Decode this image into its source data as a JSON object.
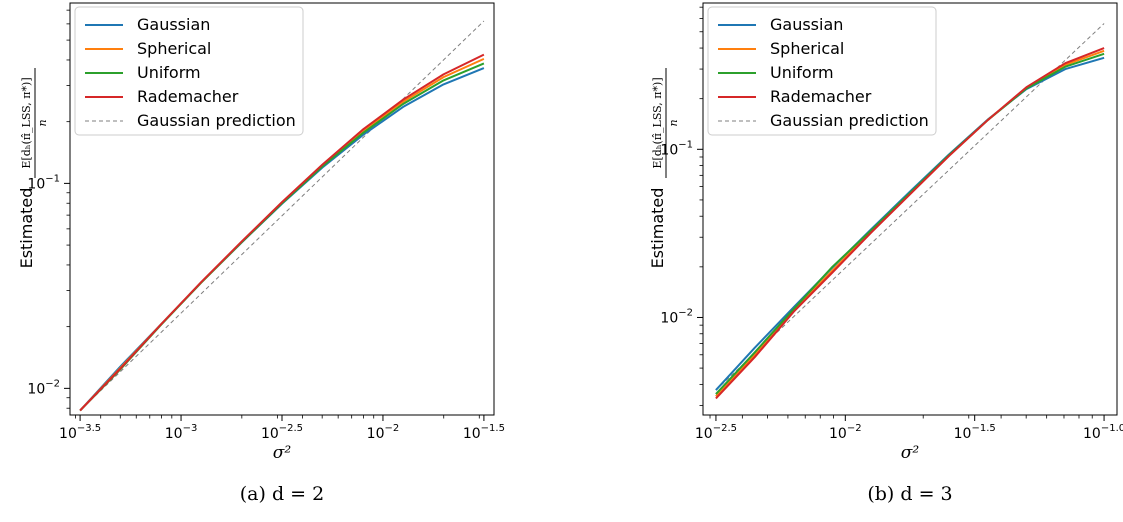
{
  "chart_data": [
    {
      "type": "line",
      "scale": "log-log",
      "caption": "(a) d = 2",
      "xlabel": "σ²",
      "ylabel": "Estimated",
      "ylabel_fraction": {
        "numerator": "E[dₕ(π̂_LSS, π*)]",
        "denominator": "n"
      },
      "xlim_log10": [
        -3.55,
        -1.45
      ],
      "ylim_log10": [
        -2.13,
        -0.12
      ],
      "x_ticks": [
        {
          "log10": -3.5,
          "label_base": "10",
          "label_exp": "−3.5"
        },
        {
          "log10": -3.0,
          "label_base": "10",
          "label_exp": "−3"
        },
        {
          "log10": -2.5,
          "label_base": "10",
          "label_exp": "−2.5"
        },
        {
          "log10": -2.0,
          "label_base": "10",
          "label_exp": "−2"
        },
        {
          "log10": -1.5,
          "label_base": "10",
          "label_exp": "−1.5"
        }
      ],
      "y_ticks": [
        {
          "log10": -2,
          "label_base": "10",
          "label_exp": "−2"
        },
        {
          "log10": -1,
          "label_base": "10",
          "label_exp": "−1"
        }
      ],
      "legend_position": "upper-left",
      "series": [
        {
          "name": "Gaussian",
          "color": "#1f77b4",
          "style": "solid",
          "x_log10": [
            -3.5,
            -3.3,
            -3.1,
            -2.9,
            -2.7,
            -2.5,
            -2.3,
            -2.1,
            -1.9,
            -1.7,
            -1.5
          ],
          "y": [
            0.0078,
            0.0128,
            0.0205,
            0.0328,
            0.0515,
            0.0795,
            0.1195,
            0.172,
            0.236,
            0.304,
            0.365
          ]
        },
        {
          "name": "Spherical",
          "color": "#ff7f0e",
          "style": "solid",
          "x_log10": [
            -3.5,
            -3.3,
            -3.1,
            -2.9,
            -2.7,
            -2.5,
            -2.3,
            -2.1,
            -1.9,
            -1.7,
            -1.5
          ],
          "y": [
            0.0078,
            0.0126,
            0.0205,
            0.0328,
            0.0517,
            0.0805,
            0.1225,
            0.18,
            0.25,
            0.33,
            0.405
          ]
        },
        {
          "name": "Uniform",
          "color": "#2ca02c",
          "style": "solid",
          "x_log10": [
            -3.5,
            -3.3,
            -3.1,
            -2.9,
            -2.7,
            -2.5,
            -2.3,
            -2.1,
            -1.9,
            -1.7,
            -1.5
          ],
          "y": [
            0.0078,
            0.0124,
            0.0204,
            0.0328,
            0.0516,
            0.08,
            0.121,
            0.176,
            0.244,
            0.318,
            0.385
          ]
        },
        {
          "name": "Rademacher",
          "color": "#d62728",
          "style": "solid",
          "x_log10": [
            -3.5,
            -3.3,
            -3.1,
            -2.9,
            -2.7,
            -2.5,
            -2.3,
            -2.1,
            -1.9,
            -1.7,
            -1.5
          ],
          "y": [
            0.0078,
            0.0125,
            0.0205,
            0.033,
            0.052,
            0.081,
            0.1235,
            0.183,
            0.256,
            0.34,
            0.425
          ]
        },
        {
          "name": "Gaussian prediction",
          "color": "#7f7f7f",
          "style": "dashed",
          "x_log10": [
            -3.5,
            -1.5
          ],
          "y": [
            0.0078,
            0.62
          ]
        }
      ]
    },
    {
      "type": "line",
      "scale": "log-log",
      "caption": "(b) d = 3",
      "xlabel": "σ²",
      "ylabel": "Estimated",
      "ylabel_fraction": {
        "numerator": "E[dₕ(π̂_LSS, π*)]",
        "denominator": "n"
      },
      "xlim_log10": [
        -2.55,
        -0.95
      ],
      "ylim_log10": [
        -2.58,
        -0.13
      ],
      "x_ticks": [
        {
          "log10": -2.5,
          "label_base": "10",
          "label_exp": "−2.5"
        },
        {
          "log10": -2.0,
          "label_base": "10",
          "label_exp": "−2"
        },
        {
          "log10": -1.5,
          "label_base": "10",
          "label_exp": "−1.5"
        },
        {
          "log10": -1.0,
          "label_base": "10",
          "label_exp": "−1.0"
        }
      ],
      "y_ticks": [
        {
          "log10": -2,
          "label_base": "10",
          "label_exp": "−2"
        },
        {
          "log10": -1,
          "label_base": "10",
          "label_exp": "−1"
        }
      ],
      "legend_position": "upper-left",
      "series": [
        {
          "name": "Gaussian",
          "color": "#1f77b4",
          "style": "solid",
          "x_log10": [
            -2.5,
            -2.35,
            -2.2,
            -2.05,
            -1.9,
            -1.75,
            -1.6,
            -1.45,
            -1.3,
            -1.15,
            -1.0
          ],
          "y": [
            0.0037,
            0.0066,
            0.0115,
            0.0198,
            0.0335,
            0.056,
            0.093,
            0.15,
            0.228,
            0.3,
            0.35
          ]
        },
        {
          "name": "Spherical",
          "color": "#ff7f0e",
          "style": "solid",
          "x_log10": [
            -2.5,
            -2.35,
            -2.2,
            -2.05,
            -1.9,
            -1.75,
            -1.6,
            -1.45,
            -1.3,
            -1.15,
            -1.0
          ],
          "y": [
            0.0034,
            0.006,
            0.011,
            0.019,
            0.0325,
            0.0545,
            0.0915,
            0.149,
            0.232,
            0.318,
            0.385
          ]
        },
        {
          "name": "Uniform",
          "color": "#2ca02c",
          "style": "solid",
          "x_log10": [
            -2.5,
            -2.35,
            -2.2,
            -2.05,
            -1.9,
            -1.75,
            -1.6,
            -1.45,
            -1.3,
            -1.15,
            -1.0
          ],
          "y": [
            0.0035,
            0.0062,
            0.0112,
            0.02,
            0.033,
            0.055,
            0.092,
            0.149,
            0.23,
            0.31,
            0.37
          ]
        },
        {
          "name": "Rademacher",
          "color": "#d62728",
          "style": "solid",
          "x_log10": [
            -2.5,
            -2.35,
            -2.2,
            -2.05,
            -1.9,
            -1.75,
            -1.6,
            -1.45,
            -1.3,
            -1.15,
            -1.0
          ],
          "y": [
            0.0033,
            0.0058,
            0.0108,
            0.0185,
            0.032,
            0.054,
            0.091,
            0.149,
            0.234,
            0.325,
            0.4
          ]
        },
        {
          "name": "Gaussian prediction",
          "color": "#7f7f7f",
          "style": "dashed",
          "x_log10": [
            -2.5,
            -1.0
          ],
          "y": [
            0.0037,
            0.56
          ]
        }
      ]
    }
  ]
}
